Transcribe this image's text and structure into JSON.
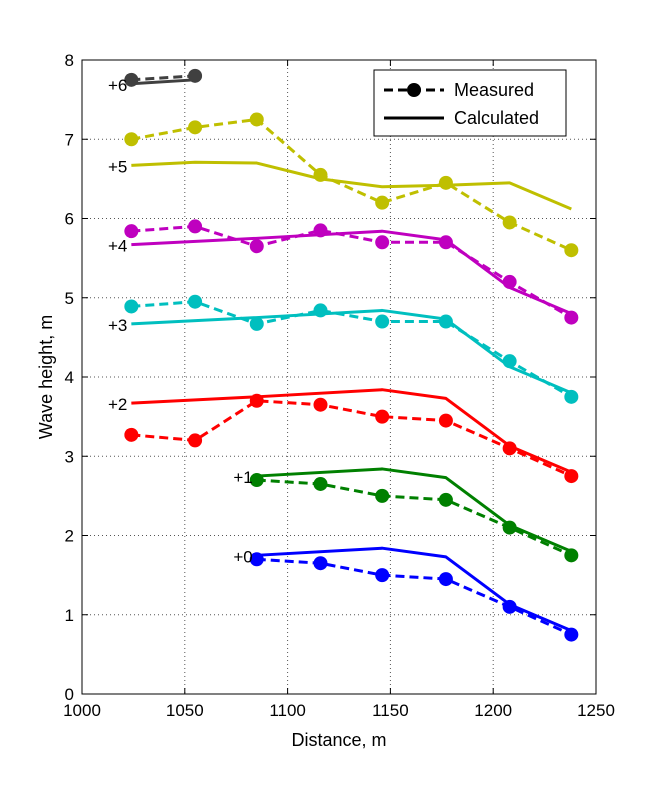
{
  "chart_data": {
    "type": "line",
    "title": "",
    "xlabel": "Distance, m",
    "ylabel": "Wave height, m",
    "xlim": [
      1000,
      1250
    ],
    "ylim": [
      0,
      8
    ],
    "xticks": [
      1000,
      1050,
      1100,
      1150,
      1200,
      1250
    ],
    "yticks": [
      0,
      1,
      2,
      3,
      4,
      5,
      6,
      7,
      8
    ],
    "grid": true,
    "legend": {
      "placement": "top-right",
      "entries": [
        {
          "label": "Measured",
          "style": "dashed-marker"
        },
        {
          "label": "Calculated",
          "style": "solid"
        }
      ]
    },
    "groups": [
      {
        "offset_label": "+0",
        "color": "#0000ff",
        "measured": {
          "x": [
            1085,
            1116,
            1146,
            1177,
            1208,
            1238
          ],
          "y": [
            1.7,
            1.65,
            1.5,
            1.45,
            1.1,
            0.75
          ]
        },
        "calculated": {
          "x": [
            1085,
            1146,
            1177,
            1208,
            1238
          ],
          "y": [
            1.75,
            1.84,
            1.73,
            1.13,
            0.8
          ]
        }
      },
      {
        "offset_label": "+1",
        "color": "#008000",
        "measured": {
          "x": [
            1085,
            1116,
            1146,
            1177,
            1208,
            1238
          ],
          "y": [
            2.7,
            2.65,
            2.5,
            2.45,
            2.1,
            1.75
          ]
        },
        "calculated": {
          "x": [
            1085,
            1146,
            1177,
            1208,
            1238
          ],
          "y": [
            2.75,
            2.84,
            2.73,
            2.13,
            1.8
          ]
        }
      },
      {
        "offset_label": "+2",
        "color": "#ff0000",
        "measured": {
          "x": [
            1024,
            1055,
            1085,
            1116,
            1146,
            1177,
            1208,
            1238
          ],
          "y": [
            3.27,
            3.2,
            3.7,
            3.65,
            3.5,
            3.45,
            3.1,
            2.75
          ]
        },
        "calculated": {
          "x": [
            1024,
            1085,
            1146,
            1177,
            1208,
            1238
          ],
          "y": [
            3.67,
            3.75,
            3.84,
            3.73,
            3.13,
            2.8
          ]
        }
      },
      {
        "offset_label": "+3",
        "color": "#00bfbf",
        "measured": {
          "x": [
            1024,
            1055,
            1085,
            1116,
            1146,
            1177,
            1208,
            1238
          ],
          "y": [
            4.89,
            4.95,
            4.67,
            4.84,
            4.7,
            4.7,
            4.2,
            3.75
          ]
        },
        "calculated": {
          "x": [
            1024,
            1085,
            1146,
            1177,
            1208,
            1238
          ],
          "y": [
            4.67,
            4.75,
            4.84,
            4.73,
            4.13,
            3.8
          ]
        }
      },
      {
        "offset_label": "+4",
        "color": "#bf00bf",
        "measured": {
          "x": [
            1024,
            1055,
            1085,
            1116,
            1146,
            1177,
            1208,
            1238
          ],
          "y": [
            5.84,
            5.9,
            5.65,
            5.85,
            5.7,
            5.7,
            5.2,
            4.75
          ]
        },
        "calculated": {
          "x": [
            1024,
            1085,
            1146,
            1177,
            1208,
            1238
          ],
          "y": [
            5.67,
            5.75,
            5.84,
            5.73,
            5.13,
            4.8
          ]
        }
      },
      {
        "offset_label": "+5",
        "color": "#bfbf00",
        "measured": {
          "x": [
            1024,
            1055,
            1085,
            1116,
            1146,
            1177,
            1208,
            1238
          ],
          "y": [
            7.0,
            7.15,
            7.25,
            6.55,
            6.2,
            6.45,
            5.95,
            5.6
          ]
        },
        "calculated": {
          "x": [
            1024,
            1055,
            1085,
            1116,
            1146,
            1177,
            1208,
            1238
          ],
          "y": [
            6.67,
            6.71,
            6.7,
            6.5,
            6.4,
            6.42,
            6.45,
            6.12
          ]
        }
      },
      {
        "offset_label": "+6",
        "color": "#404040",
        "measured": {
          "x": [
            1024,
            1055
          ],
          "y": [
            7.75,
            7.8
          ]
        },
        "calculated": {
          "x": [
            1024,
            1055
          ],
          "y": [
            7.7,
            7.75
          ]
        }
      }
    ]
  }
}
